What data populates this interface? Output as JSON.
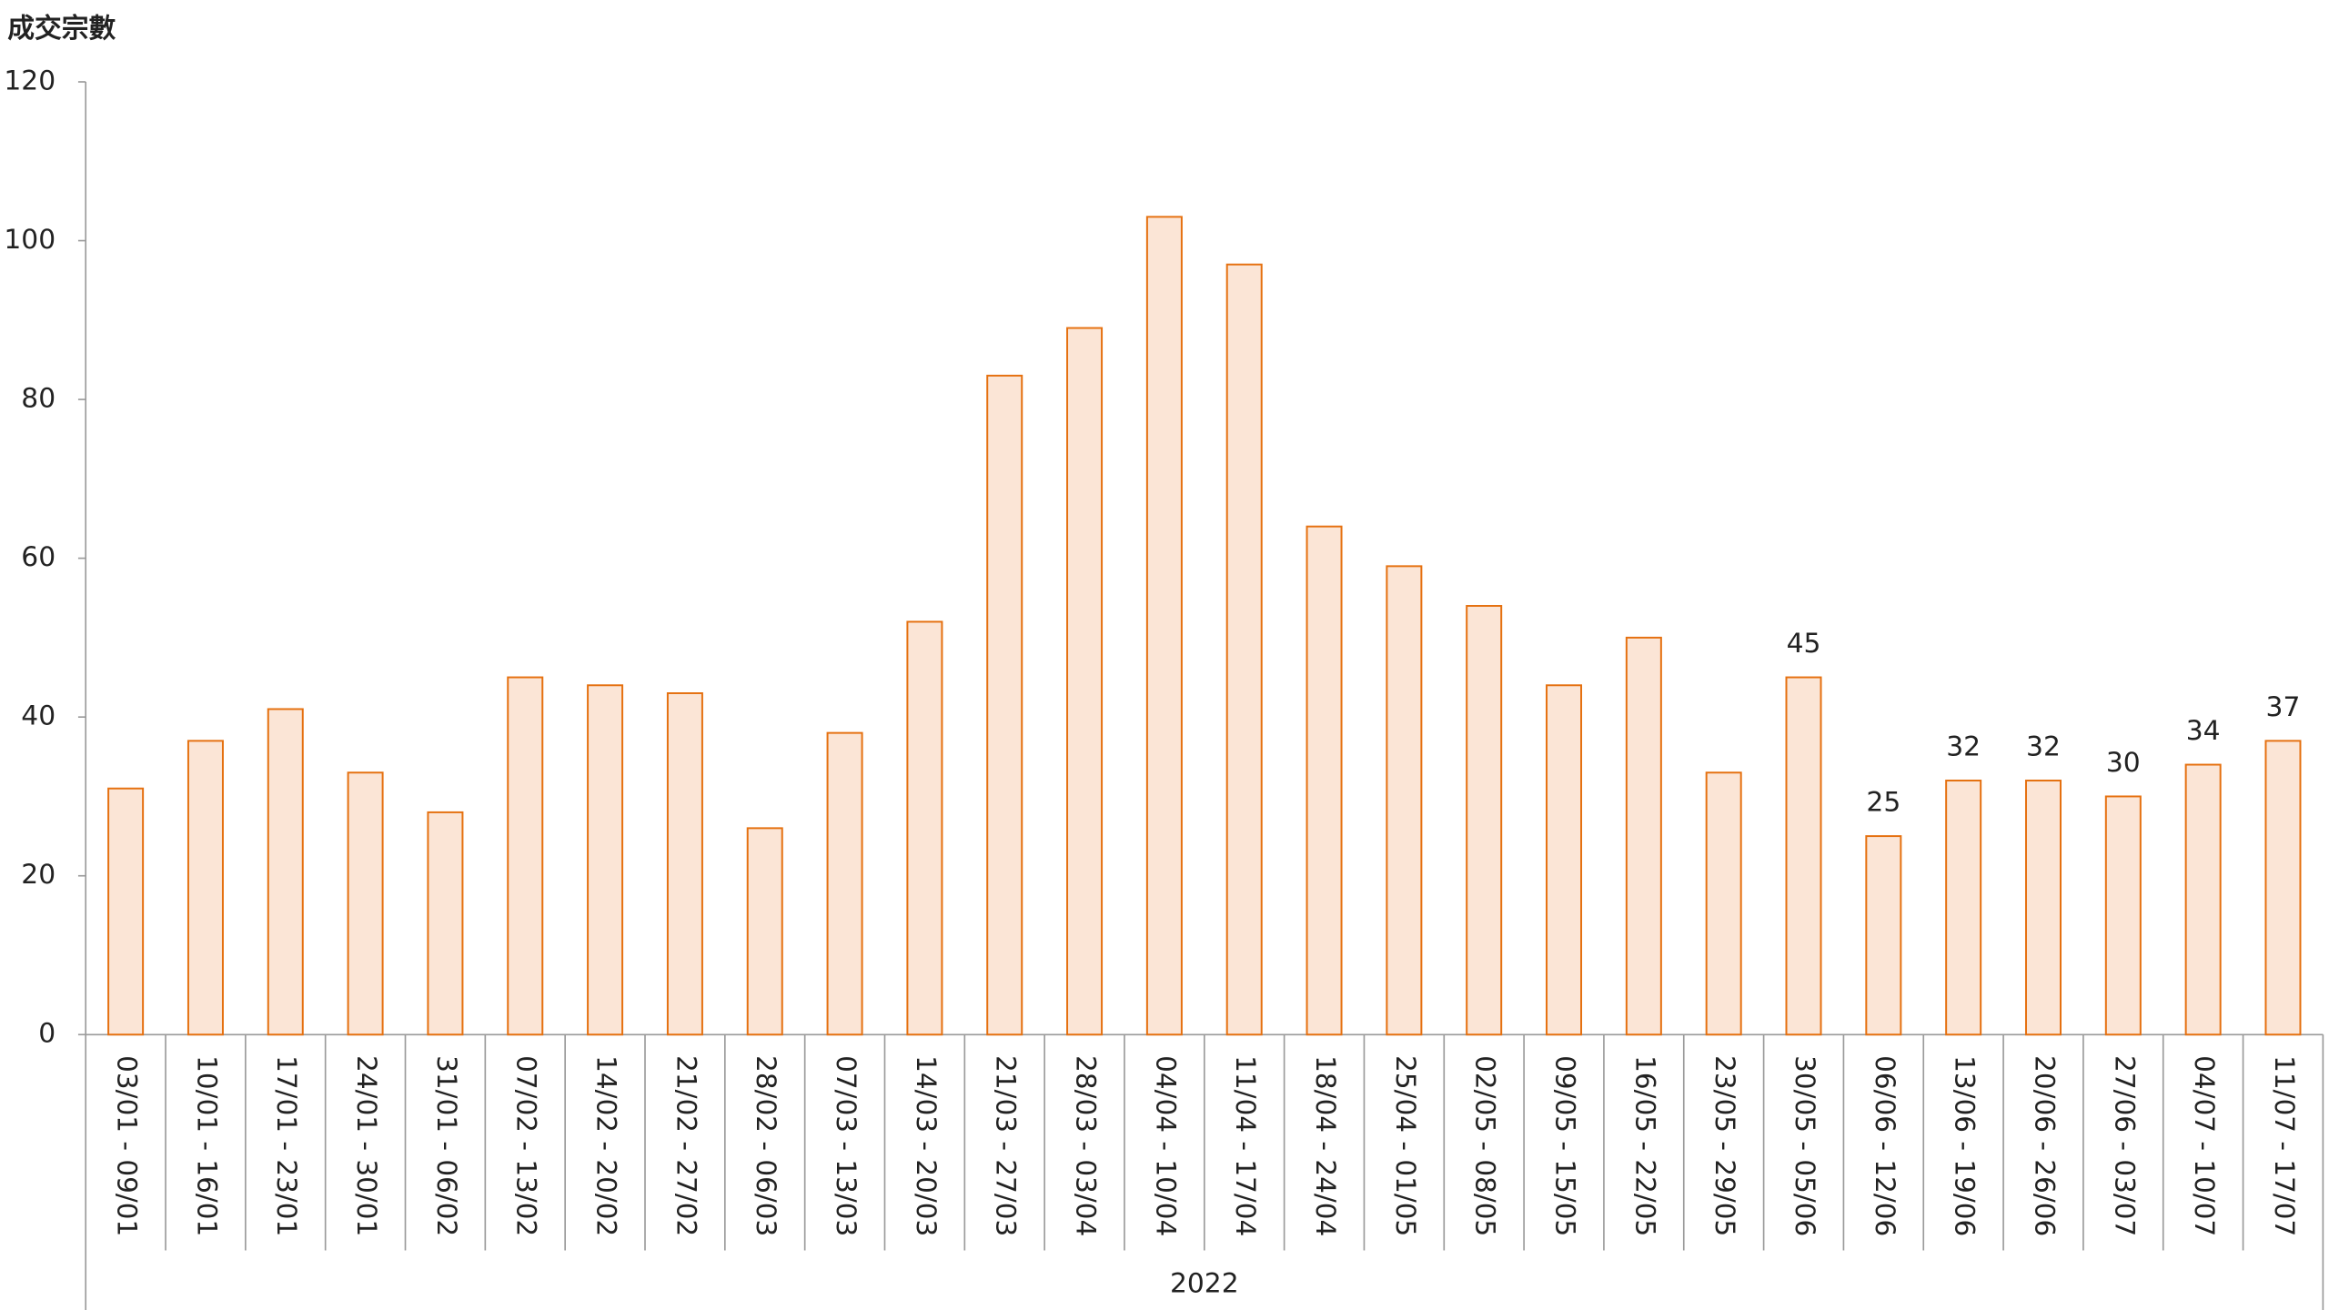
{
  "chart_data": {
    "type": "bar",
    "ylabel": "成交宗數",
    "group_label": "2022",
    "categories": [
      "03/01 - 09/01",
      "10/01 - 16/01",
      "17/01 - 23/01",
      "24/01 - 30/01",
      "31/01 - 06/02",
      "07/02 - 13/02",
      "14/02 - 20/02",
      "21/02 - 27/02",
      "28/02 - 06/03",
      "07/03 - 13/03",
      "14/03 - 20/03",
      "21/03 - 27/03",
      "28/03 - 03/04",
      "04/04 - 10/04",
      "11/04 - 17/04",
      "18/04 - 24/04",
      "25/04 - 01/05",
      "02/05 - 08/05",
      "09/05 - 15/05",
      "16/05 - 22/05",
      "23/05 - 29/05",
      "30/05 - 05/06",
      "06/06 - 12/06",
      "13/06 - 19/06",
      "20/06 - 26/06",
      "27/06 - 03/07",
      "04/07 - 10/07",
      "11/07 - 17/07"
    ],
    "values": [
      31,
      37,
      41,
      33,
      28,
      45,
      44,
      43,
      26,
      38,
      52,
      83,
      89,
      103,
      97,
      64,
      59,
      54,
      44,
      50,
      33,
      45,
      25,
      32,
      32,
      30,
      34,
      37
    ],
    "value_labels": [
      null,
      null,
      null,
      null,
      null,
      null,
      null,
      null,
      null,
      null,
      null,
      null,
      null,
      null,
      null,
      null,
      null,
      null,
      null,
      null,
      null,
      "45",
      "25",
      "32",
      "32",
      "30",
      "34",
      "37"
    ],
    "color": "#fbe5d6",
    "edge_color": "#e5700f",
    "ylim": [
      0,
      120
    ],
    "yticks": [
      0,
      20,
      40,
      60,
      80,
      100,
      120
    ],
    "grid": false
  }
}
